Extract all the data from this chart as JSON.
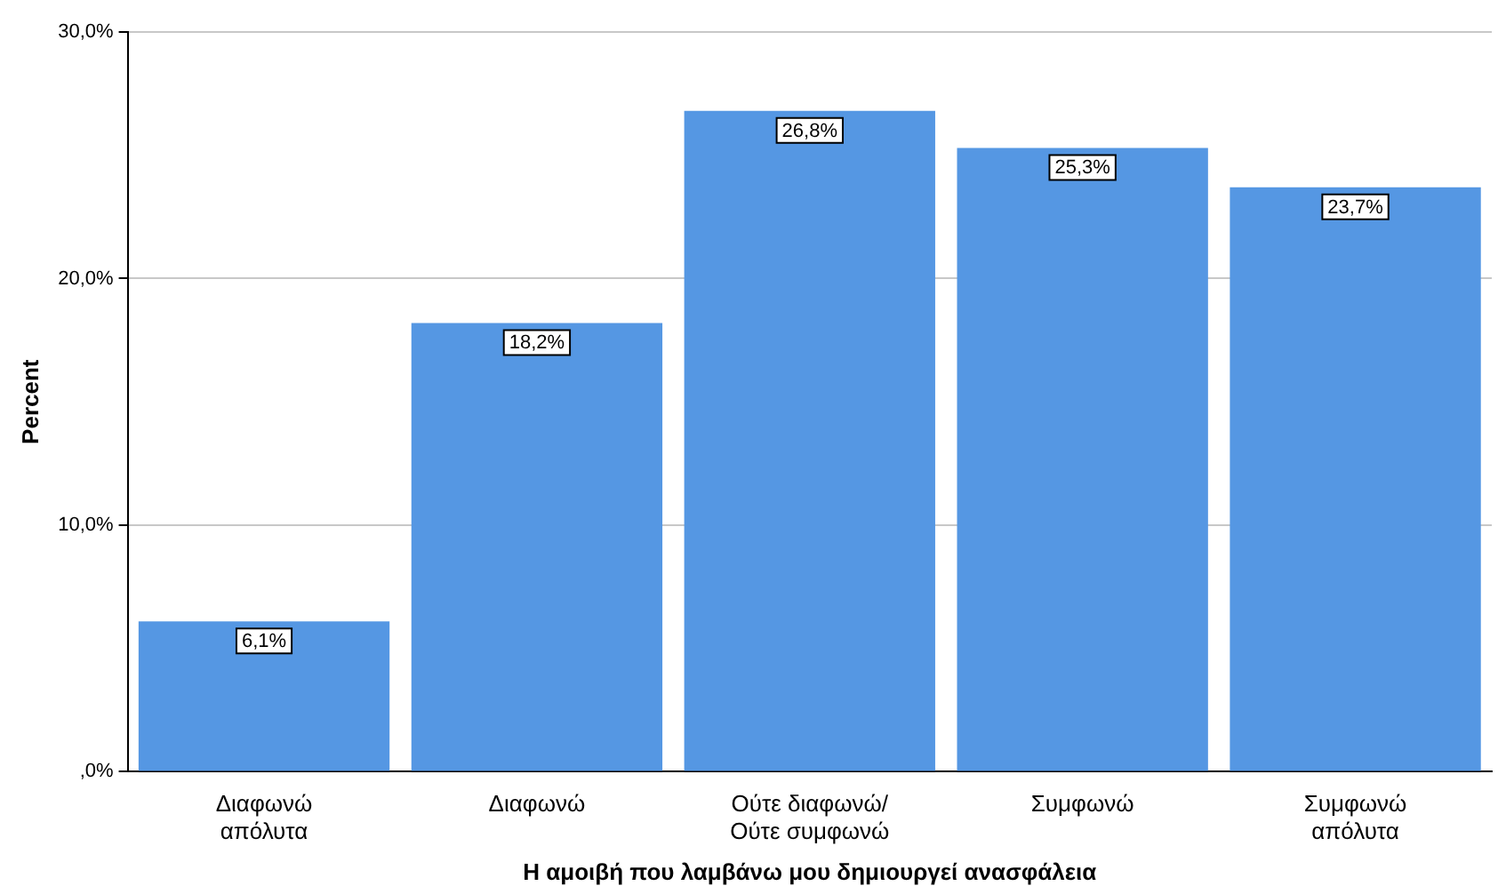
{
  "chart_data": {
    "type": "bar",
    "xlabel": "Η αμοιβή που λαμβάνω μου δημιουργεί ανασφάλεια",
    "ylabel": "Percent",
    "categories": [
      "Διαφωνώ απόλυτα",
      "Διαφωνώ",
      "Ούτε διαφωνώ/ Ούτε συμφωνώ",
      "Συμφωνώ",
      "Συμφωνώ απόλυτα"
    ],
    "values": [
      6.1,
      18.2,
      26.8,
      25.3,
      23.7
    ],
    "value_labels": [
      "6,1%",
      "18,2%",
      "26,8%",
      "25,3%",
      "23,7%"
    ],
    "color": "#5597e3",
    "ylim": [
      0,
      30
    ],
    "yticks": [
      {
        "value": 0,
        "label": ",0%"
      },
      {
        "value": 10,
        "label": "10,0%"
      },
      {
        "value": 20,
        "label": "20,0%"
      },
      {
        "value": 30,
        "label": "30,0%"
      }
    ],
    "grid": "y",
    "legend": false
  }
}
